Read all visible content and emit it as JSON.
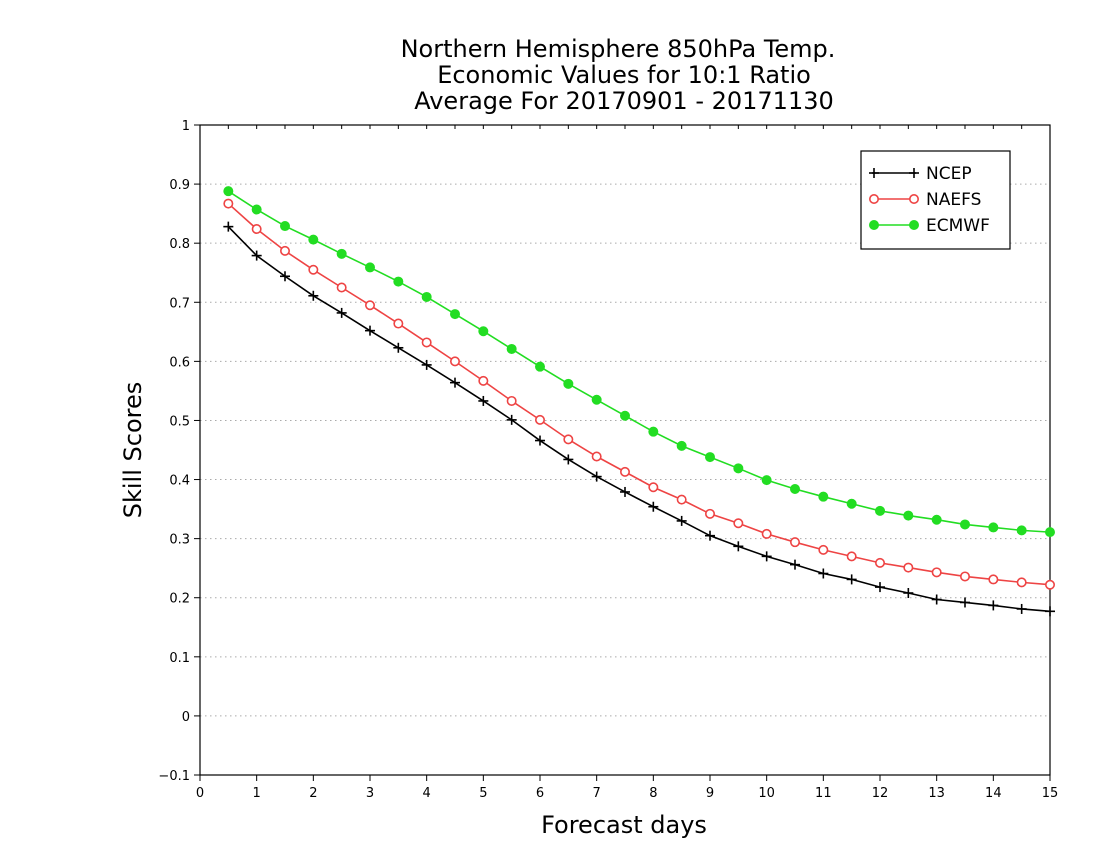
{
  "chart_data": {
    "type": "line",
    "title": [
      "Northern Hemisphere 850hPa Temp.",
      "Economic Values for 10:1 Ratio",
      "Average For 20170901 - 20171130"
    ],
    "xlabel": "Forecast days",
    "ylabel": "Skill Scores",
    "xlim": [
      0,
      15
    ],
    "ylim": [
      -0.1,
      1
    ],
    "xticks": [
      "0",
      "1",
      "2",
      "3",
      "4",
      "5",
      "6",
      "7",
      "8",
      "9",
      "10",
      "11",
      "12",
      "13",
      "14",
      "15"
    ],
    "yticks": [
      "−0.1",
      "0",
      "0.1",
      "0.2",
      "0.3",
      "0.4",
      "0.5",
      "0.6",
      "0.7",
      "0.8",
      "0.9",
      "1"
    ],
    "grid": true,
    "legend_position": "top-right",
    "x": [
      0.5,
      1,
      1.5,
      2,
      2.5,
      3,
      3.5,
      4,
      4.5,
      5,
      5.5,
      6,
      6.5,
      7,
      7.5,
      8,
      8.5,
      9,
      9.5,
      10,
      10.5,
      11,
      11.5,
      12,
      12.5,
      13,
      13.5,
      14,
      14.5,
      15
    ],
    "series": [
      {
        "name": "NCEP",
        "color": "#000000",
        "marker": "plus",
        "values": [
          0.828,
          0.779,
          0.744,
          0.711,
          0.682,
          0.652,
          0.623,
          0.594,
          0.564,
          0.533,
          0.501,
          0.466,
          0.434,
          0.405,
          0.379,
          0.354,
          0.33,
          0.305,
          0.287,
          0.27,
          0.256,
          0.241,
          0.231,
          0.218,
          0.208,
          0.197,
          0.192,
          0.187,
          0.181,
          0.177
        ]
      },
      {
        "name": "NAEFS",
        "color": "#ee4444",
        "marker": "open-circle",
        "values": [
          0.867,
          0.824,
          0.787,
          0.755,
          0.725,
          0.695,
          0.664,
          0.632,
          0.6,
          0.567,
          0.533,
          0.501,
          0.468,
          0.439,
          0.413,
          0.387,
          0.366,
          0.342,
          0.326,
          0.308,
          0.294,
          0.281,
          0.27,
          0.259,
          0.251,
          0.243,
          0.236,
          0.231,
          0.226,
          0.222
        ]
      },
      {
        "name": "ECMWF",
        "color": "#22dd22",
        "marker": "filled-circle",
        "values": [
          0.888,
          0.857,
          0.829,
          0.806,
          0.782,
          0.759,
          0.735,
          0.709,
          0.68,
          0.651,
          0.621,
          0.591,
          0.562,
          0.535,
          0.508,
          0.481,
          0.457,
          0.438,
          0.419,
          0.399,
          0.384,
          0.371,
          0.359,
          0.347,
          0.339,
          0.332,
          0.324,
          0.319,
          0.314,
          0.311
        ]
      }
    ]
  }
}
